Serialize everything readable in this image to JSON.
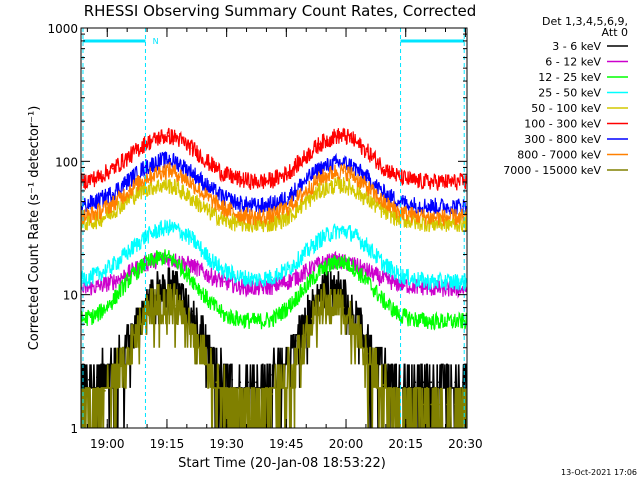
{
  "chart_data": {
    "type": "line",
    "title": "RHESSI Observing Summary Count Rates, Corrected",
    "xlabel": "Start Time (20-Jan-08 18:53:22)",
    "ylabel": "Corrected Count Rate (s⁻¹ detector⁻¹)",
    "x_unit": "minutes after 18:53:22",
    "xlim": [
      0,
      97
    ],
    "ylim": [
      1,
      1000
    ],
    "yscale": "log",
    "x_ticks": [
      {
        "x": 6.6,
        "label": "19:00"
      },
      {
        "x": 21.6,
        "label": "19:15"
      },
      {
        "x": 36.6,
        "label": "19:30"
      },
      {
        "x": 51.6,
        "label": "19:45"
      },
      {
        "x": 66.6,
        "label": "20:00"
      },
      {
        "x": 81.6,
        "label": "20:15"
      },
      {
        "x": 96.6,
        "label": "20:30"
      }
    ],
    "y_ticks": [
      {
        "y": 1,
        "label": "1"
      },
      {
        "y": 10,
        "label": "10"
      },
      {
        "y": 100,
        "label": "100"
      },
      {
        "y": 1000,
        "label": "1000"
      }
    ],
    "legend_header": [
      "Det 1,3,4,5,6,9,",
      "Att 0"
    ],
    "legend_position": "top-right, outside plot",
    "timestamp": "13-Oct-2021 17:06",
    "annotation": {
      "text": "N",
      "x": 17
    },
    "night_markers": [
      {
        "x_start": 0.5,
        "x_end": 16.2
      },
      {
        "x_start": 80.3,
        "x_end": 96.3
      }
    ],
    "vertical_markers_x": [
      0.5,
      16.2,
      80.3,
      96.3
    ],
    "series": [
      {
        "name": "3 - 6 keV",
        "color": "#000000",
        "x": [
          0,
          2,
          4,
          6,
          8,
          10,
          12,
          14,
          16,
          18,
          20,
          22,
          24,
          26,
          28,
          30,
          32,
          34,
          36,
          38,
          40,
          42,
          44,
          46,
          48,
          50,
          52,
          54,
          56,
          58,
          60,
          62,
          64,
          66,
          68,
          70,
          72,
          74,
          76,
          78,
          80,
          82,
          84,
          86,
          88,
          90,
          92,
          94,
          96
        ],
        "y": [
          2.2,
          2.3,
          2.4,
          2.6,
          3.0,
          3.6,
          4.5,
          6.0,
          8.0,
          10.0,
          11.5,
          12.0,
          11.0,
          9.5,
          7.5,
          5.5,
          4.0,
          3.0,
          2.5,
          2.3,
          2.2,
          2.2,
          2.2,
          2.3,
          2.5,
          2.9,
          3.5,
          4.5,
          6.0,
          8.0,
          10.0,
          11.0,
          11.0,
          10.0,
          8.0,
          6.0,
          4.5,
          3.5,
          2.8,
          2.4,
          2.3,
          2.2,
          2.2,
          2.2,
          2.2,
          2.2,
          2.2,
          2.2,
          2.2
        ]
      },
      {
        "name": "6 - 12 keV",
        "color": "#cc00cc",
        "x": [
          0,
          4,
          8,
          12,
          16,
          20,
          22,
          24,
          28,
          32,
          36,
          40,
          44,
          48,
          52,
          56,
          60,
          64,
          66,
          68,
          72,
          76,
          80,
          84,
          88,
          92,
          96
        ],
        "y": [
          11.0,
          11.5,
          12.5,
          14.5,
          17.0,
          18.5,
          18.5,
          18.0,
          16.5,
          14.0,
          12.5,
          11.5,
          11.2,
          11.5,
          12.5,
          14.5,
          17.0,
          18.0,
          17.5,
          17.0,
          15.0,
          13.0,
          12.0,
          11.5,
          11.2,
          11.0,
          11.0
        ]
      },
      {
        "name": "12 - 25 keV",
        "color": "#00ff00",
        "x": [
          0,
          4,
          8,
          12,
          16,
          20,
          22,
          24,
          28,
          32,
          36,
          40,
          44,
          48,
          52,
          56,
          60,
          64,
          66,
          68,
          72,
          76,
          80,
          84,
          88,
          92,
          96
        ],
        "y": [
          6.5,
          7.0,
          9.0,
          13.0,
          17.0,
          19.0,
          19.0,
          17.5,
          13.0,
          9.0,
          7.0,
          6.5,
          6.3,
          6.5,
          8.0,
          11.0,
          15.0,
          17.5,
          17.5,
          16.5,
          12.5,
          9.0,
          7.0,
          6.5,
          6.3,
          6.3,
          6.3
        ]
      },
      {
        "name": "25 - 50 keV",
        "color": "#00ffff",
        "x": [
          0,
          4,
          8,
          12,
          16,
          20,
          22,
          24,
          28,
          32,
          36,
          40,
          44,
          48,
          52,
          56,
          60,
          64,
          66,
          68,
          72,
          76,
          80,
          84,
          88,
          92,
          96
        ],
        "y": [
          13.0,
          14.0,
          16.5,
          21.0,
          27.0,
          31.0,
          32.0,
          31.0,
          26.0,
          19.0,
          15.0,
          13.5,
          13.0,
          13.5,
          15.5,
          20.0,
          26.0,
          30.0,
          30.0,
          29.0,
          23.0,
          17.0,
          14.0,
          13.0,
          12.5,
          12.5,
          12.5
        ]
      },
      {
        "name": "50 - 100 keV",
        "color": "#d4c800",
        "x": [
          0,
          4,
          8,
          12,
          16,
          20,
          22,
          24,
          28,
          32,
          36,
          40,
          44,
          48,
          52,
          56,
          60,
          64,
          66,
          68,
          72,
          76,
          80,
          84,
          88,
          92,
          96
        ],
        "y": [
          34.0,
          36.0,
          42.0,
          52.0,
          62.0,
          66.0,
          66.0,
          63.0,
          52.0,
          42.0,
          36.0,
          34.0,
          33.5,
          34.0,
          38.0,
          48.0,
          60.0,
          66.0,
          66.0,
          63.0,
          52.0,
          42.0,
          37.0,
          35.0,
          34.0,
          34.0,
          34.0
        ]
      },
      {
        "name": "100 - 300 keV",
        "color": "#ff0000",
        "x": [
          0,
          4,
          8,
          12,
          16,
          20,
          22,
          24,
          28,
          32,
          36,
          40,
          44,
          48,
          52,
          56,
          60,
          64,
          66,
          68,
          72,
          76,
          80,
          84,
          88,
          92,
          96
        ],
        "y": [
          70.0,
          75.0,
          88.0,
          108.0,
          135.0,
          152.0,
          155.0,
          150.0,
          125.0,
          98.0,
          80.0,
          73.0,
          70.0,
          72.0,
          82.0,
          105.0,
          135.0,
          155.0,
          155.0,
          148.0,
          118.0,
          90.0,
          76.0,
          71.0,
          70.0,
          70.0,
          70.0
        ]
      },
      {
        "name": "300 - 800 keV",
        "color": "#0000ff",
        "x": [
          0,
          4,
          8,
          12,
          16,
          20,
          22,
          24,
          28,
          32,
          36,
          40,
          44,
          48,
          52,
          56,
          60,
          64,
          66,
          68,
          72,
          76,
          80,
          84,
          88,
          92,
          96
        ],
        "y": [
          46.0,
          50.0,
          58.0,
          72.0,
          90.0,
          101.0,
          103.0,
          99.0,
          82.0,
          64.0,
          53.0,
          48.0,
          46.0,
          47.0,
          54.0,
          70.0,
          88.0,
          97.0,
          97.0,
          93.0,
          75.0,
          58.0,
          50.0,
          47.0,
          46.0,
          46.0,
          46.0
        ]
      },
      {
        "name": "800 - 7000 keV",
        "color": "#ff8000",
        "x": [
          0,
          4,
          8,
          12,
          16,
          20,
          22,
          24,
          28,
          32,
          36,
          40,
          44,
          48,
          52,
          56,
          60,
          64,
          66,
          68,
          72,
          76,
          80,
          84,
          88,
          92,
          96
        ],
        "y": [
          38.0,
          41.0,
          48.0,
          60.0,
          75.0,
          84.0,
          86.0,
          82.0,
          68.0,
          53.0,
          44.0,
          40.0,
          38.0,
          39.0,
          45.0,
          58.0,
          74.0,
          84.0,
          84.0,
          80.0,
          64.0,
          49.0,
          42.0,
          39.0,
          38.0,
          38.0,
          38.0
        ]
      },
      {
        "name": "7000 - 15000 keV",
        "color": "#808000",
        "x": [
          0,
          2,
          4,
          6,
          8,
          10,
          12,
          14,
          16,
          18,
          20,
          22,
          24,
          26,
          28,
          30,
          32,
          34,
          36,
          38,
          40,
          42,
          44,
          46,
          48,
          50,
          52,
          54,
          56,
          58,
          60,
          62,
          64,
          66,
          68,
          70,
          72,
          74,
          76,
          78,
          80,
          82,
          84,
          86,
          88,
          90,
          92,
          94,
          96
        ],
        "y": [
          1.5,
          1.6,
          1.7,
          1.9,
          2.3,
          2.9,
          3.8,
          5.2,
          7.0,
          8.5,
          9.0,
          9.0,
          8.3,
          7.0,
          5.5,
          4.0,
          2.9,
          2.2,
          1.8,
          1.6,
          1.5,
          1.5,
          1.5,
          1.6,
          1.8,
          2.1,
          2.7,
          3.6,
          5.0,
          6.6,
          8.0,
          8.5,
          8.5,
          8.0,
          6.5,
          5.0,
          3.6,
          2.7,
          2.1,
          1.8,
          1.6,
          1.5,
          1.5,
          1.5,
          1.5,
          1.5,
          1.5,
          1.5,
          1.5
        ]
      }
    ]
  }
}
